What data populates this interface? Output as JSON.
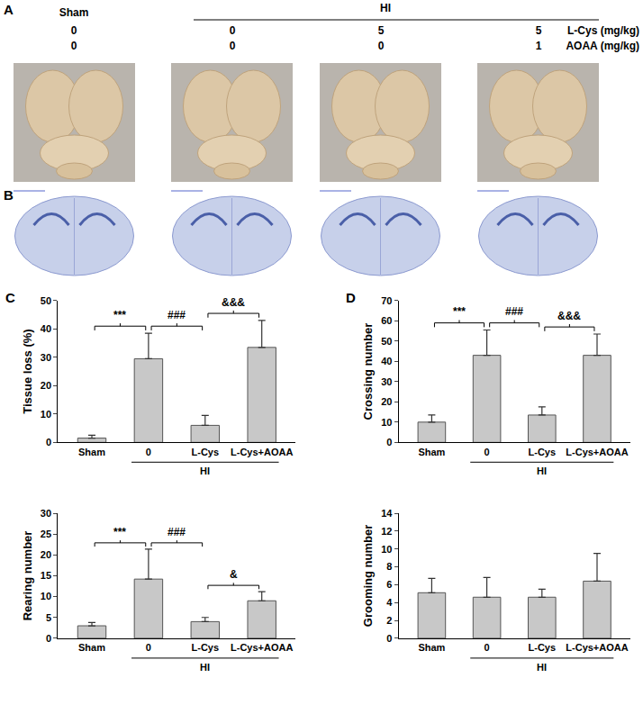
{
  "panel_labels": {
    "photos": "A",
    "sections": "B"
  },
  "treatment_table": {
    "groups": [
      {
        "label": "Sham",
        "columns": 1
      },
      {
        "label": "HI",
        "columns": 3
      }
    ],
    "rows": [
      {
        "label": "L-Cys (mg/kg)",
        "values": [
          0,
          0,
          5,
          5
        ]
      },
      {
        "label": "AOAA (mg/kg)",
        "values": [
          0,
          0,
          0,
          1
        ]
      }
    ]
  },
  "chart_data": [
    {
      "type": "bar",
      "panel": "C",
      "y_label": "Tissue loss (%)",
      "categories": [
        "Sham",
        "0",
        "L-Cys",
        "L-Cys+AOAA"
      ],
      "group_label": "HI",
      "group_categories": [
        "0",
        "L-Cys",
        "L-Cys+AOAA"
      ],
      "values": [
        1.5,
        29.5,
        6,
        33.5
      ],
      "errors": [
        1,
        9,
        3.5,
        9.5
      ],
      "color": "#c8c8c8",
      "ylim": [
        0,
        50
      ],
      "yticks": [
        0,
        10,
        20,
        30,
        40,
        50
      ],
      "grid": false,
      "significance": [
        {
          "from": "Sham",
          "to": "0",
          "text": "***"
        },
        {
          "from": "0",
          "to": "L-Cys",
          "text": "###"
        },
        {
          "from": "L-Cys",
          "to": "L-Cys+AOAA",
          "text": "&&&"
        }
      ]
    },
    {
      "type": "bar",
      "panel": "D",
      "y_label": "Crossing number",
      "categories": [
        "Sham",
        "0",
        "L-Cys",
        "L-Cys+AOAA"
      ],
      "group_label": "HI",
      "group_categories": [
        "0",
        "L-Cys",
        "L-Cys+AOAA"
      ],
      "values": [
        10,
        43,
        13.5,
        43
      ],
      "errors": [
        3.5,
        12.5,
        4,
        10.5
      ],
      "color": "#c8c8c8",
      "ylim": [
        0,
        70
      ],
      "yticks": [
        0,
        10,
        20,
        30,
        40,
        50,
        60,
        70
      ],
      "grid": false,
      "significance": [
        {
          "from": "Sham",
          "to": "0",
          "text": "***"
        },
        {
          "from": "0",
          "to": "L-Cys",
          "text": "###"
        },
        {
          "from": "L-Cys",
          "to": "L-Cys+AOAA",
          "text": "&&&"
        }
      ]
    },
    {
      "type": "bar",
      "y_label": "Rearing number",
      "categories": [
        "Sham",
        "0",
        "L-Cys",
        "L-Cys+AOAA"
      ],
      "group_label": "HI",
      "group_categories": [
        "0",
        "L-Cys",
        "L-Cys+AOAA"
      ],
      "values": [
        3,
        14.2,
        4,
        9
      ],
      "errors": [
        0.8,
        7.2,
        1,
        2.2
      ],
      "color": "#c8c8c8",
      "ylim": [
        0,
        30
      ],
      "yticks": [
        0,
        5,
        10,
        15,
        20,
        25,
        30
      ],
      "grid": false,
      "significance": [
        {
          "from": "Sham",
          "to": "0",
          "text": "***"
        },
        {
          "from": "0",
          "to": "L-Cys",
          "text": "###"
        },
        {
          "from": "L-Cys",
          "to": "L-Cys+AOAA",
          "text": "&"
        }
      ]
    },
    {
      "type": "bar",
      "y_label": "Grooming number",
      "categories": [
        "Sham",
        "0",
        "L-Cys",
        "L-Cys+AOAA"
      ],
      "group_label": "HI",
      "group_categories": [
        "0",
        "L-Cys",
        "L-Cys+AOAA"
      ],
      "values": [
        5.1,
        4.6,
        4.6,
        6.4
      ],
      "errors": [
        1.6,
        2.2,
        0.9,
        3.1
      ],
      "color": "#c8c8c8",
      "ylim": [
        0,
        14
      ],
      "yticks": [
        0,
        2,
        4,
        6,
        8,
        10,
        12,
        14
      ],
      "grid": false,
      "significance": []
    }
  ]
}
